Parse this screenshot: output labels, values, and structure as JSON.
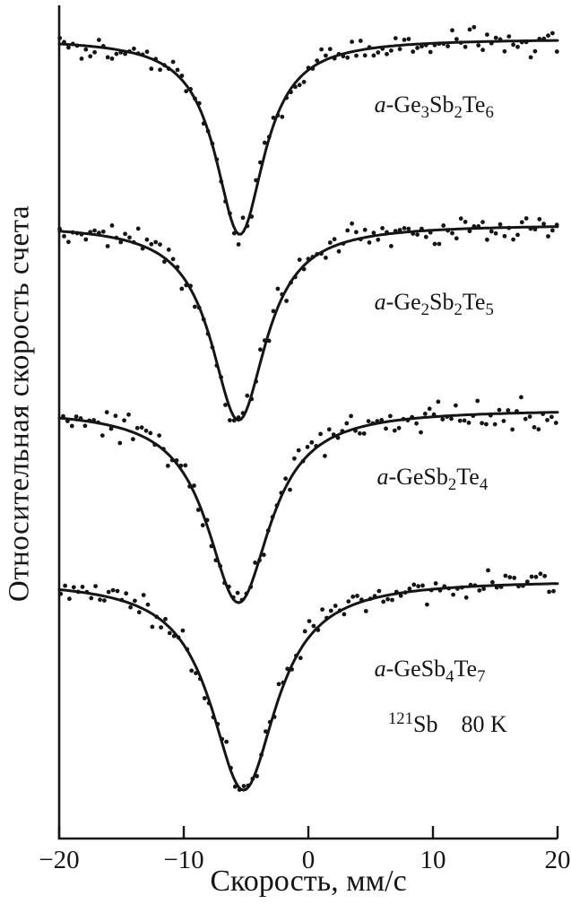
{
  "chart_data": {
    "type": "scatter-line",
    "title": "",
    "xlabel": "Скорость, мм/с",
    "ylabel": "Относительная скорость счета",
    "xlim": [
      -20,
      20
    ],
    "ylim": [
      0,
      10
    ],
    "x_ticks": [
      {
        "v": -20,
        "label": "−20"
      },
      {
        "v": -10,
        "label": "−10"
      },
      {
        "v": 0,
        "label": "0"
      },
      {
        "v": 10,
        "label": "10"
      },
      {
        "v": 20,
        "label": "20"
      }
    ],
    "grid": false,
    "legend": false,
    "axis_color": "#151515",
    "curve_color": "#151515",
    "point_radius": 2.4,
    "point_step": 0.35,
    "annotation": {
      "text": "121Sb   80 K",
      "x": 6.4,
      "y": 1.28,
      "parts": [
        {
          "t": "121",
          "sup": true
        },
        {
          "t": "Sb    80 K"
        }
      ]
    },
    "series": [
      {
        "name": "a-Ge3Sb2Te6",
        "label_parts": [
          {
            "t": "a",
            "italic": true
          },
          {
            "t": "-Ge"
          },
          {
            "t": "3",
            "sub": true
          },
          {
            "t": "Sb"
          },
          {
            "t": "2",
            "sub": true
          },
          {
            "t": "Te"
          },
          {
            "t": "6",
            "sub": true
          }
        ],
        "label_x": 5.3,
        "label_y": 8.72,
        "baseline": 9.6,
        "depth": 2.35,
        "center": -5.5,
        "hwhm": 2.4,
        "noise": 0.08,
        "seed": 101
      },
      {
        "name": "a-Ge2Sb2Te5",
        "label_parts": [
          {
            "t": "a",
            "italic": true
          },
          {
            "t": "-Ge"
          },
          {
            "t": "2",
            "sub": true
          },
          {
            "t": "Sb"
          },
          {
            "t": "2",
            "sub": true
          },
          {
            "t": "Te"
          },
          {
            "t": "5",
            "sub": true
          }
        ],
        "label_x": 5.3,
        "label_y": 6.35,
        "baseline": 7.37,
        "depth": 2.35,
        "center": -5.6,
        "hwhm": 2.7,
        "noise": 0.08,
        "seed": 202
      },
      {
        "name": "a-GeSb2Te4",
        "label_parts": [
          {
            "t": "a",
            "italic": true
          },
          {
            "t": "-GeSb"
          },
          {
            "t": "2",
            "sub": true
          },
          {
            "t": "Te"
          },
          {
            "t": "4",
            "sub": true
          }
        ],
        "label_x": 5.5,
        "label_y": 4.25,
        "baseline": 5.15,
        "depth": 2.32,
        "center": -5.6,
        "hwhm": 3.1,
        "noise": 0.08,
        "seed": 303
      },
      {
        "name": "a-GeSb4Te7",
        "label_parts": [
          {
            "t": "a",
            "italic": true
          },
          {
            "t": "-GeSb"
          },
          {
            "t": "4",
            "sub": true
          },
          {
            "t": "Te"
          },
          {
            "t": "7",
            "sub": true
          }
        ],
        "label_x": 5.3,
        "label_y": 1.95,
        "baseline": 3.1,
        "depth": 2.52,
        "center": -5.2,
        "hwhm": 3.2,
        "noise": 0.08,
        "seed": 404
      }
    ]
  }
}
